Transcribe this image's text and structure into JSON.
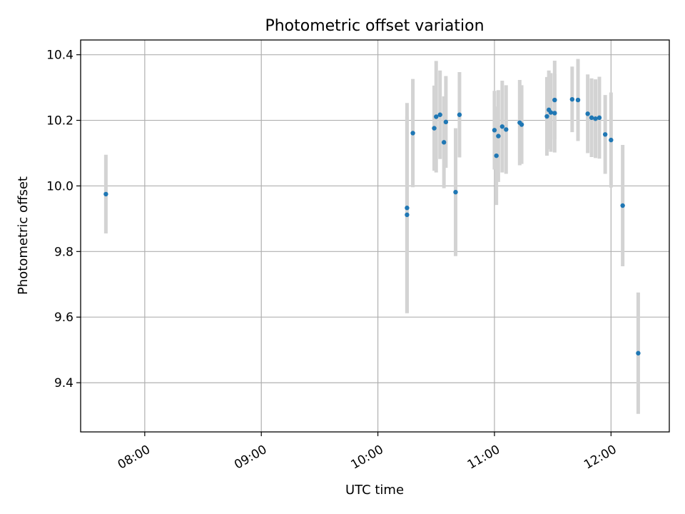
{
  "chart_data": {
    "type": "scatter",
    "title": "Photometric offset variation",
    "xlabel": "UTC time",
    "ylabel": "Photometric offset",
    "xlim": [
      "07:27",
      "12:30"
    ],
    "ylim": [
      9.25,
      10.445
    ],
    "x_ticks": [
      "08:00",
      "09:00",
      "10:00",
      "11:00",
      "12:00"
    ],
    "y_ticks": [
      "9.4",
      "9.6",
      "9.8",
      "10.0",
      "10.2",
      "10.4"
    ],
    "grid": true,
    "colors": {
      "point": "#1f77b4",
      "errorbar": "#d3d3d3"
    },
    "series": [
      {
        "points": [
          {
            "x": "07:40",
            "y": 9.975,
            "err": 0.12
          },
          {
            "x": "10:15",
            "y": 9.933,
            "err": 0.32
          },
          {
            "x": "10:15",
            "y": 9.912,
            "err": 0.3
          },
          {
            "x": "10:18",
            "y": 10.161,
            "err": 0.165
          },
          {
            "x": "10:29",
            "y": 10.176,
            "err": 0.13
          },
          {
            "x": "10:30",
            "y": 10.211,
            "err": 0.17
          },
          {
            "x": "10:32",
            "y": 10.217,
            "err": 0.135
          },
          {
            "x": "10:34",
            "y": 10.133,
            "err": 0.14
          },
          {
            "x": "10:35",
            "y": 10.195,
            "err": 0.14
          },
          {
            "x": "10:40",
            "y": 9.981,
            "err": 0.195
          },
          {
            "x": "10:42",
            "y": 10.217,
            "err": 0.13
          },
          {
            "x": "11:00",
            "y": 10.17,
            "err": 0.12
          },
          {
            "x": "11:01",
            "y": 10.092,
            "err": 0.15
          },
          {
            "x": "11:02",
            "y": 10.152,
            "err": 0.14
          },
          {
            "x": "11:04",
            "y": 10.181,
            "err": 0.14
          },
          {
            "x": "11:06",
            "y": 10.172,
            "err": 0.135
          },
          {
            "x": "11:13",
            "y": 10.193,
            "err": 0.13
          },
          {
            "x": "11:14",
            "y": 10.187,
            "err": 0.12
          },
          {
            "x": "11:27",
            "y": 10.212,
            "err": 0.12
          },
          {
            "x": "11:28",
            "y": 10.232,
            "err": 0.12
          },
          {
            "x": "11:29",
            "y": 10.224,
            "err": 0.12
          },
          {
            "x": "11:31",
            "y": 10.222,
            "err": 0.12
          },
          {
            "x": "11:31",
            "y": 10.262,
            "err": 0.12
          },
          {
            "x": "11:40",
            "y": 10.264,
            "err": 0.1
          },
          {
            "x": "11:43",
            "y": 10.262,
            "err": 0.125
          },
          {
            "x": "11:48",
            "y": 10.22,
            "err": 0.12
          },
          {
            "x": "11:50",
            "y": 10.208,
            "err": 0.12
          },
          {
            "x": "11:52",
            "y": 10.205,
            "err": 0.12
          },
          {
            "x": "11:54",
            "y": 10.208,
            "err": 0.125
          },
          {
            "x": "11:57",
            "y": 10.157,
            "err": 0.12
          },
          {
            "x": "12:00",
            "y": 10.14,
            "err": 0.145
          },
          {
            "x": "12:06",
            "y": 9.94,
            "err": 0.185
          },
          {
            "x": "12:14",
            "y": 9.49,
            "err": 0.185
          }
        ]
      }
    ]
  }
}
